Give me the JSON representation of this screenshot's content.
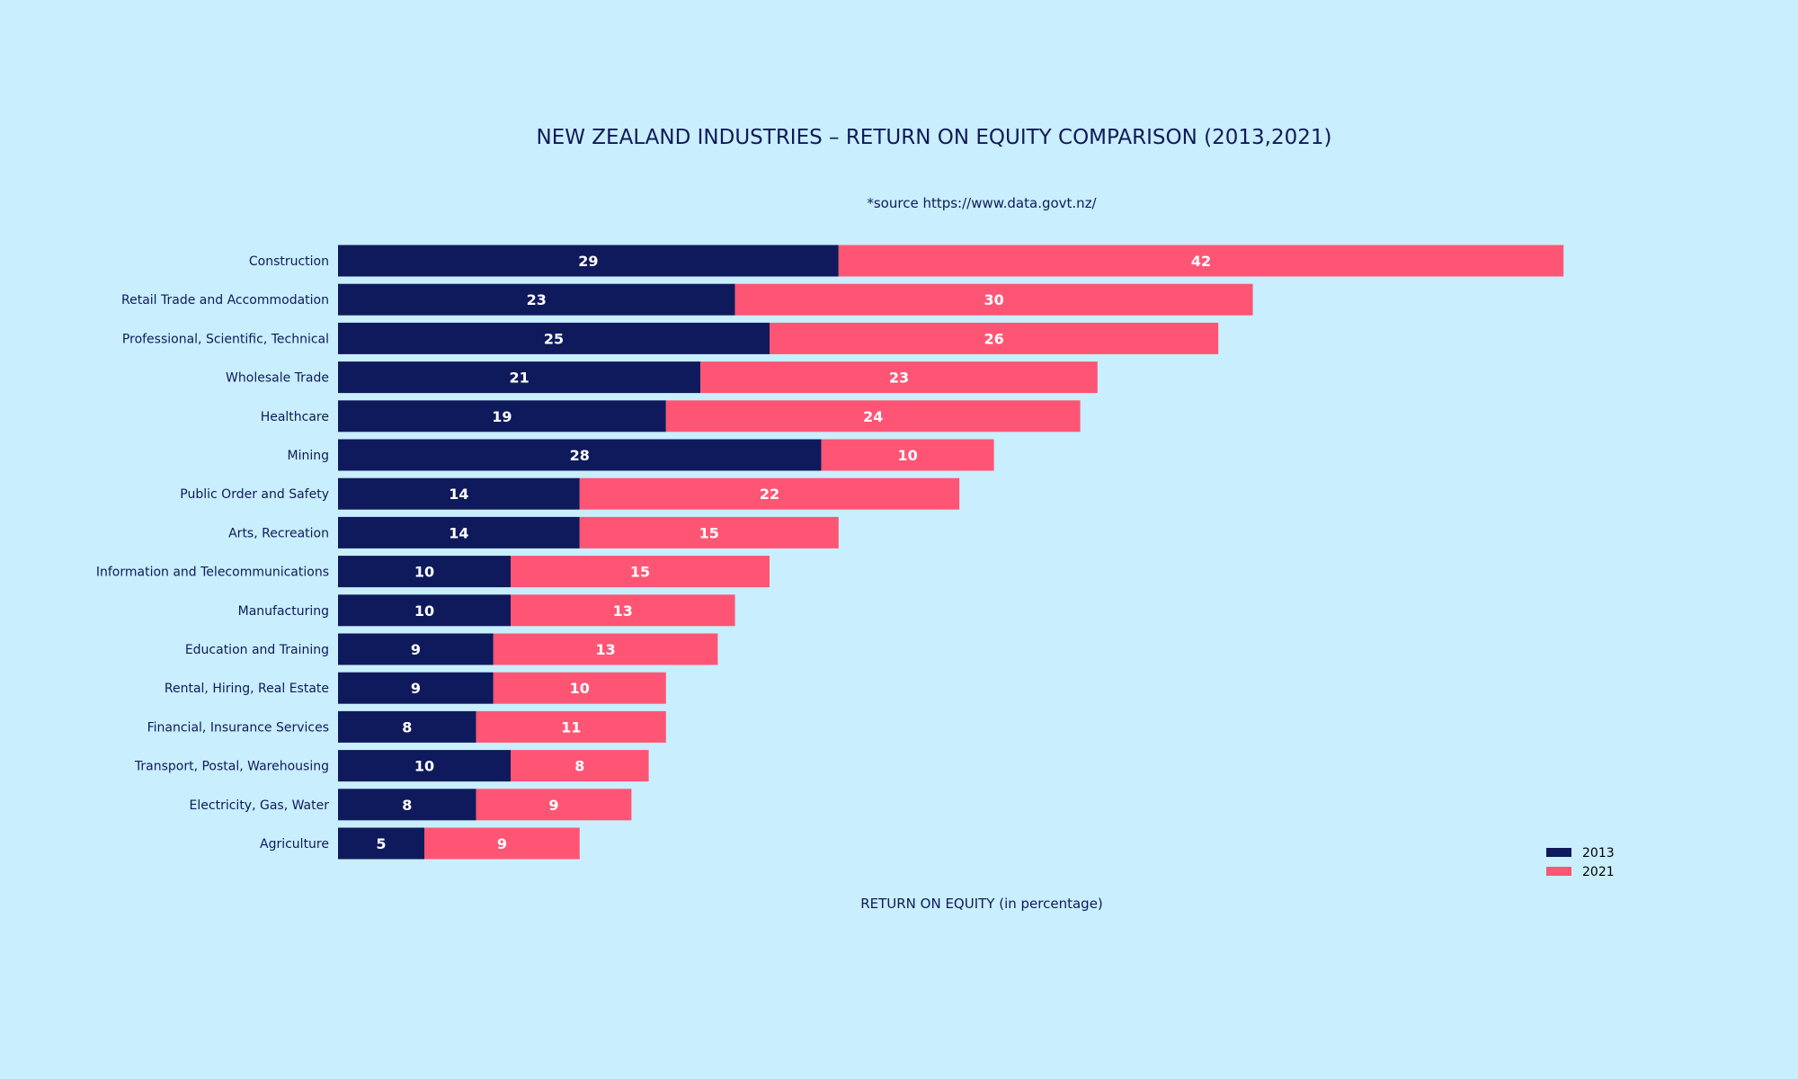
{
  "chart_data": {
    "type": "bar",
    "orientation": "horizontal",
    "stacked": true,
    "title": "NEW ZEALAND INDUSTRIES – RETURN ON EQUITY COMPARISON (2013,2021)",
    "subtitle": "*source https://www.data.govt.nz/",
    "xlabel": "RETURN ON EQUITY (in percentage)",
    "ylabel": "",
    "grid": false,
    "legend_position": "bottom-right",
    "xlim": [
      0,
      80
    ],
    "categories": [
      "Construction",
      "Retail Trade and Accommodation",
      "Professional, Scientific, Technical",
      "Wholesale Trade",
      "Healthcare",
      "Mining",
      "Public Order and Safety",
      "Arts, Recreation",
      "Information and Telecommunications",
      "Manufacturing",
      "Education and Training",
      "Rental, Hiring, Real Estate",
      "Financial, Insurance Services",
      "Transport, Postal, Warehousing",
      "Electricity, Gas, Water",
      "Agriculture"
    ],
    "series": [
      {
        "name": "2013",
        "color": "#0f1a5c",
        "values": [
          29,
          23,
          25,
          21,
          19,
          28,
          14,
          14,
          10,
          10,
          9,
          9,
          8,
          10,
          8,
          5
        ]
      },
      {
        "name": "2021",
        "color": "#ff5574",
        "values": [
          42,
          30,
          26,
          23,
          24,
          10,
          22,
          15,
          15,
          13,
          13,
          10,
          11,
          8,
          9,
          9
        ]
      }
    ]
  }
}
